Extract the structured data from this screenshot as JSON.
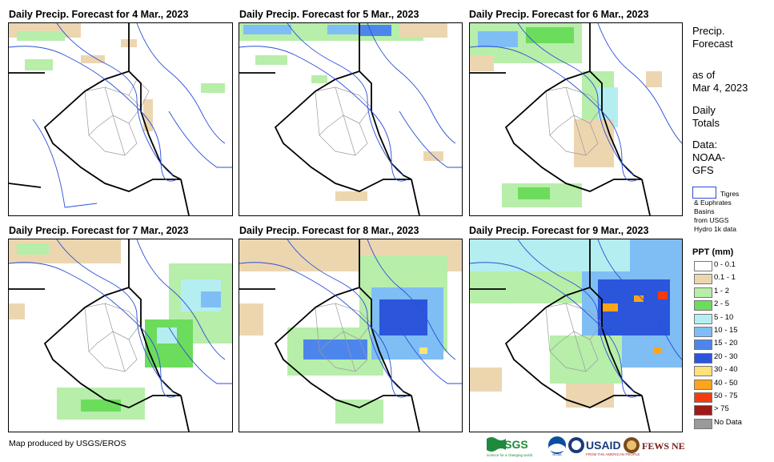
{
  "panels": [
    {
      "title": "Daily Precip. Forecast for 4 Mar., 2023"
    },
    {
      "title": "Daily Precip. Forecast for 5 Mar., 2023"
    },
    {
      "title": "Daily Precip. Forecast for 6 Mar., 2023"
    },
    {
      "title": "Daily Precip. Forecast for 7 Mar., 2023"
    },
    {
      "title": "Daily Precip. Forecast for 8 Mar., 2023"
    },
    {
      "title": "Daily Precip. Forecast for 9 Mar., 2023"
    }
  ],
  "sidebar": {
    "title_line1": "Precip.",
    "title_line2": "Forecast",
    "asof_line1": "as of",
    "asof_line2": "Mar 4, 2023",
    "daily_line1": "Daily",
    "daily_line2": "Totals",
    "data_line1": "Data:",
    "data_line2": "NOAA-",
    "data_line3": "GFS",
    "basin_line1": "Tigres",
    "basin_line2": "& Euphrates",
    "basin_line3": "Basins",
    "basin_line4": "from USGS",
    "basin_line5": "Hydro 1k data"
  },
  "legend": {
    "title": "PPT (mm)",
    "items": [
      {
        "label": "0 - 0.1",
        "color": "#ffffff"
      },
      {
        "label": "0.1 - 1",
        "color": "#ecd6b0"
      },
      {
        "label": "1 - 2",
        "color": "#b7eeaa"
      },
      {
        "label": "2 - 5",
        "color": "#6cdc5c"
      },
      {
        "label": "5 - 10",
        "color": "#b4eef0"
      },
      {
        "label": "10 - 15",
        "color": "#7fbef4"
      },
      {
        "label": "15 - 20",
        "color": "#4c86ec"
      },
      {
        "label": "20 - 30",
        "color": "#2b56dc"
      },
      {
        "label": "30 - 40",
        "color": "#ffe17a"
      },
      {
        "label": "40 - 50",
        "color": "#ffa41a"
      },
      {
        "label": "50 - 75",
        "color": "#f53a10"
      },
      {
        "label": "> 75",
        "color": "#a01818"
      },
      {
        "label": "No Data",
        "color": "#9a9a9a"
      }
    ]
  },
  "credit": "Map produced by USGS/EROS",
  "logos": {
    "usgs": "USGS",
    "usgs_tag": "science for a changing world",
    "noaa": "NOAA",
    "usaid": "USAID",
    "usaid_tag": "FROM THE AMERICAN PEOPLE",
    "fewsnet": "FEWS NET"
  },
  "colors": {
    "border": "#000000",
    "river": "#2a4fd6",
    "admin": "#9a9a9a"
  }
}
